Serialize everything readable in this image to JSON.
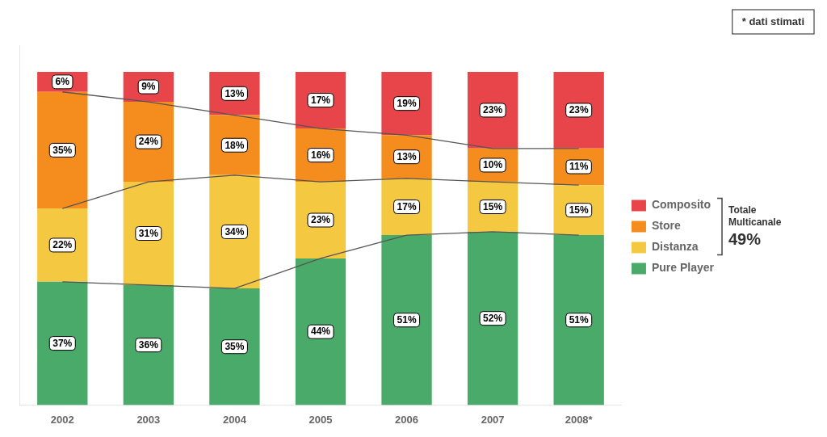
{
  "chart_data": {
    "type": "bar",
    "stacked": true,
    "categories": [
      "2002",
      "2003",
      "2004",
      "2005",
      "2006",
      "2007",
      "2008*"
    ],
    "series": [
      {
        "name": "Pure Player",
        "color": "#4aaa6a",
        "values": [
          37,
          36,
          35,
          44,
          51,
          52,
          51
        ],
        "value_labels": [
          "37%",
          "36%",
          "35%",
          "44%",
          "51%",
          "52%",
          "51%"
        ]
      },
      {
        "name": "Distanza",
        "color": "#f5c842",
        "values": [
          22,
          31,
          34,
          23,
          17,
          15,
          15
        ],
        "value_labels": [
          "22%",
          "31%",
          "34%",
          "23%",
          "17%",
          "15%",
          "15%"
        ]
      },
      {
        "name": "Store",
        "color": "#f58c1e",
        "values": [
          35,
          24,
          18,
          16,
          13,
          10,
          11
        ],
        "value_labels": [
          "35%",
          "24%",
          "18%",
          "16%",
          "13%",
          "10%",
          "11%"
        ]
      },
      {
        "name": "Composito",
        "color": "#e8454a",
        "values": [
          6,
          9,
          13,
          17,
          19,
          23,
          23
        ],
        "value_labels": [
          "6%",
          "9%",
          "13%",
          "17%",
          "19%",
          "23%",
          "23%"
        ]
      }
    ],
    "ylim": [
      0,
      108
    ],
    "yticks": [],
    "tick_labels": "x",
    "grid": false,
    "legend": "right",
    "data_labels": true,
    "annotations": [
      "* dati stimati",
      "Totale\nMulticanale",
      "49%"
    ]
  }
}
